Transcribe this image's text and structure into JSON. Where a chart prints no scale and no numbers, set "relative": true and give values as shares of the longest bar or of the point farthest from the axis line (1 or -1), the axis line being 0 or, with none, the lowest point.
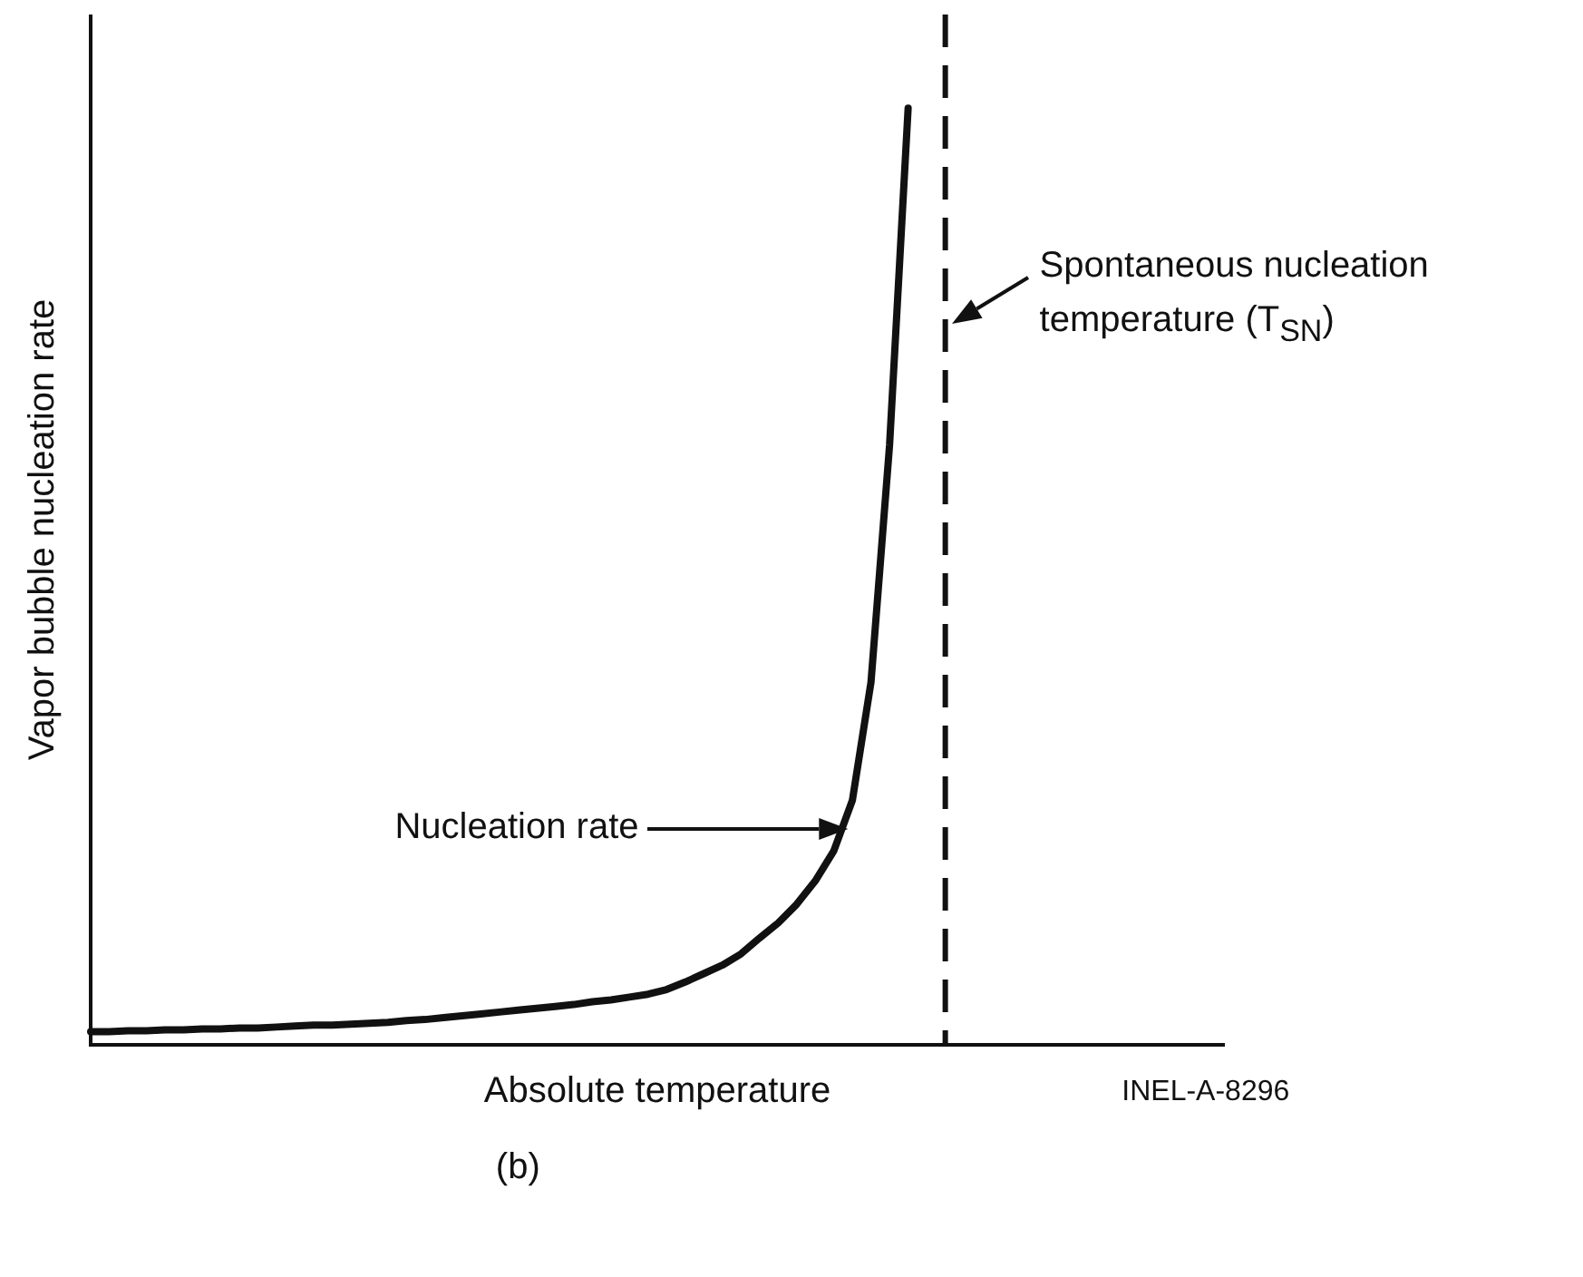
{
  "chart_data": {
    "type": "line",
    "relative": true,
    "xlabel": "Absolute temperature",
    "ylabel": "Vapor bubble nucleation rate",
    "categories": [
      null,
      null,
      null,
      null,
      null,
      null,
      null,
      null,
      null,
      null,
      null,
      null,
      null,
      null,
      null,
      null,
      null,
      null,
      null,
      null,
      null,
      null,
      null,
      null,
      null,
      null,
      null,
      null,
      null,
      null,
      null,
      null,
      null,
      null,
      null,
      null,
      null,
      null,
      null,
      null,
      null,
      null,
      null,
      null,
      null,
      null,
      null,
      null,
      null,
      null,
      null,
      null,
      null,
      null,
      null,
      null,
      null,
      null,
      null,
      null,
      null,
      null
    ],
    "series": [
      {
        "color": "#111111",
        "values": [
          0.014,
          0.014,
          0.015,
          0.015,
          0.016,
          0.016,
          0.017,
          0.017,
          0.018,
          0.018,
          0.019,
          0.02,
          0.021,
          0.021,
          0.022,
          0.023,
          0.024,
          0.026,
          0.027,
          0.029,
          0.031,
          0.033,
          0.035,
          0.037,
          0.039,
          0.041,
          0.043,
          0.046,
          0.048,
          0.051,
          0.054,
          0.059,
          0.067,
          0.076,
          0.085,
          0.097,
          0.114,
          0.13,
          0.15,
          0.175,
          0.207,
          0.261,
          0.387,
          0.64,
          1,
          null,
          null,
          null,
          null,
          null,
          null,
          null,
          null,
          null,
          null,
          null,
          null,
          null,
          null,
          null,
          null,
          null
        ]
      }
    ],
    "annotations": [
      "Spontaneous nucleation temperature (T$_{SN}$)",
      "Nucleation rate",
      "INEL-A-8296",
      "(b)"
    ],
    "grid": false,
    "legend": false,
    "marker": "none",
    "line_style": "solid",
    "tick_labels": false
  }
}
